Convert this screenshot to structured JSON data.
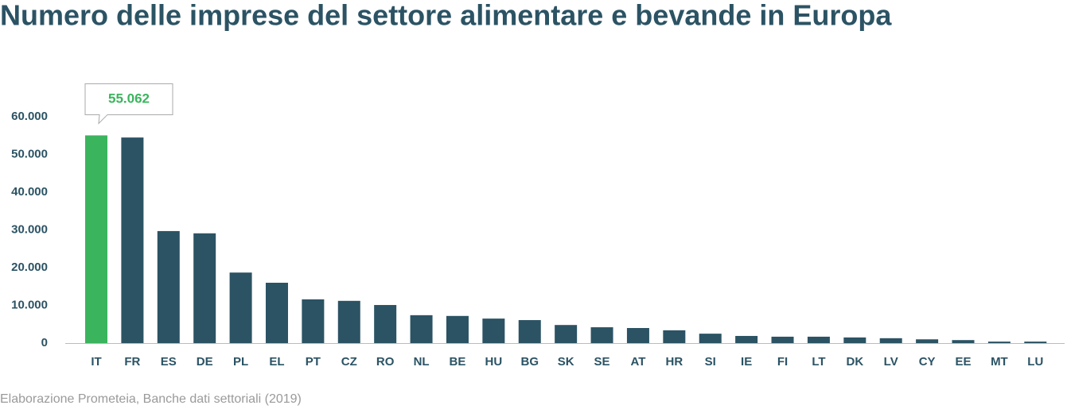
{
  "chart_data": {
    "type": "bar",
    "title": "Numero delle imprese del settore alimentare e bevande in Europa",
    "source": "Elaborazione Prometeia, Banche dati settoriali (2019)",
    "categories": [
      "IT",
      "FR",
      "ES",
      "DE",
      "PL",
      "EL",
      "PT",
      "CZ",
      "RO",
      "NL",
      "BE",
      "HU",
      "BG",
      "SK",
      "SE",
      "AT",
      "HR",
      "SI",
      "IE",
      "FI",
      "LT",
      "DK",
      "LV",
      "CY",
      "EE",
      "MT",
      "LU"
    ],
    "values": [
      55062,
      54500,
      29700,
      29100,
      18700,
      16000,
      11600,
      11200,
      10100,
      7400,
      7200,
      6500,
      6100,
      4800,
      4200,
      4000,
      3400,
      2500,
      1900,
      1700,
      1700,
      1500,
      1300,
      1000,
      800,
      400,
      400
    ],
    "value_labels": [
      "55.062",
      null,
      null,
      null,
      null,
      null,
      null,
      null,
      null,
      null,
      null,
      null,
      null,
      null,
      null,
      null,
      null,
      null,
      null,
      null,
      null,
      null,
      null,
      null,
      null,
      null,
      null
    ],
    "color": "#2b5364",
    "highlight_color": "#3bb45e",
    "ylim": [
      0,
      60000
    ],
    "yticks": [
      0,
      {
        "value": 10000,
        "label": "10.000"
      },
      {
        "value": 20000,
        "label": "20.000"
      },
      {
        "value": 30000,
        "label": "30.000"
      },
      {
        "value": 40000,
        "label": "40.000"
      },
      {
        "value": 50000,
        "label": "50.000"
      },
      {
        "value": 60000,
        "label": "60.000"
      }
    ],
    "grid": false
  }
}
